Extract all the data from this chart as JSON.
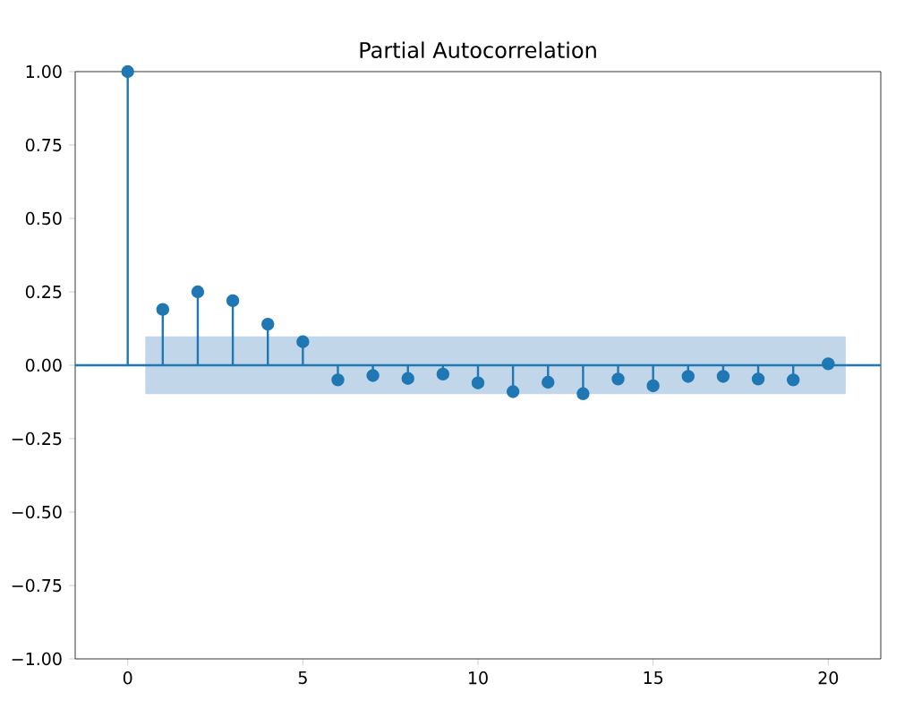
{
  "chart_data": {
    "type": "lollipop",
    "title": "Partial Autocorrelation",
    "x": [
      0,
      1,
      2,
      3,
      4,
      5,
      6,
      7,
      8,
      9,
      10,
      11,
      12,
      13,
      14,
      15,
      16,
      17,
      18,
      19,
      20
    ],
    "values": [
      1.0,
      0.19,
      0.25,
      0.22,
      0.14,
      0.08,
      -0.05,
      -0.035,
      -0.045,
      -0.03,
      -0.06,
      -0.09,
      -0.058,
      -0.097,
      -0.047,
      -0.07,
      -0.038,
      -0.038,
      -0.047,
      -0.05,
      0.005
    ],
    "color": "#1f77b4",
    "marker": "circle",
    "xlim": [
      -1.5,
      21.5
    ],
    "ylim": [
      -1,
      1
    ],
    "xticks": [
      0,
      5,
      10,
      15,
      20
    ],
    "yticks": [
      {
        "value": -1,
        "label": "−1.00"
      },
      {
        "value": -0.75,
        "label": "−0.75"
      },
      {
        "value": -0.5,
        "label": "−0.50"
      },
      {
        "value": -0.25,
        "label": "−0.25"
      },
      {
        "value": 0,
        "label": "0.00"
      },
      {
        "value": 0.25,
        "label": "0.25"
      },
      {
        "value": 0.5,
        "label": "0.50"
      },
      {
        "value": 0.75,
        "label": "0.75"
      },
      {
        "value": 1,
        "label": "1.00"
      }
    ],
    "ref_lines": [
      {
        "axis": "y",
        "value": 0,
        "color": "#1f77b4"
      }
    ],
    "bands": [
      {
        "axis": "y",
        "from": -0.098,
        "to": 0.098,
        "color": "#c1d7e9"
      }
    ]
  }
}
